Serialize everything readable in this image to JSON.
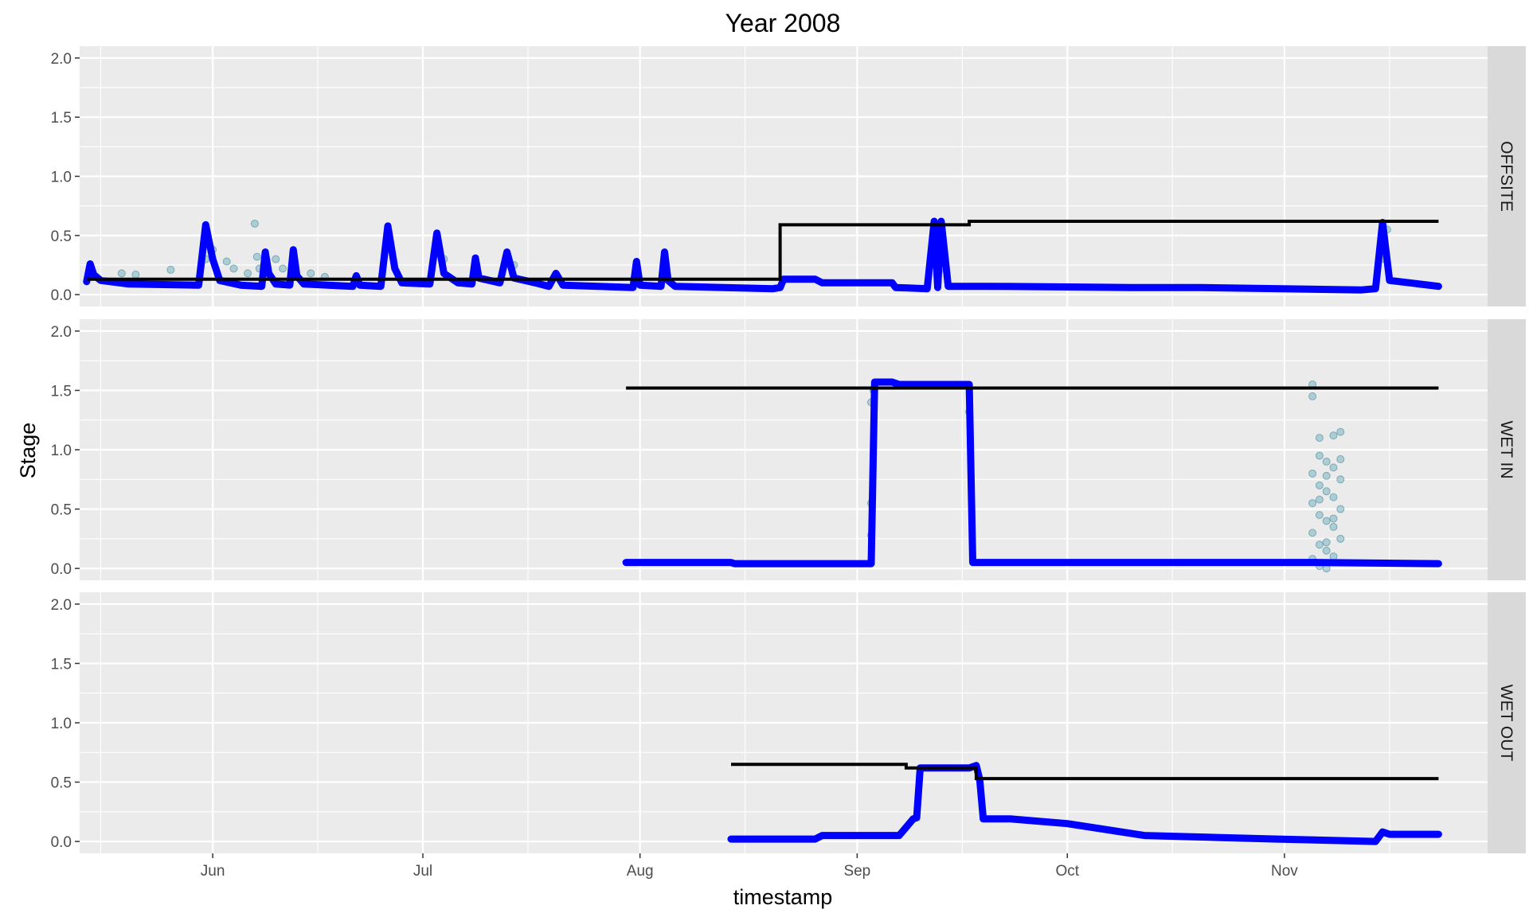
{
  "chart_data": {
    "type": "line",
    "title": "Year 2008",
    "xlabel": "timestamp",
    "ylabel": "Stage",
    "x_axis": {
      "type": "date",
      "range": [
        "2008-05-13",
        "2008-11-30"
      ],
      "ticks": [
        {
          "date": "2008-06-01",
          "label": "Jun"
        },
        {
          "date": "2008-07-01",
          "label": "Jul"
        },
        {
          "date": "2008-08-01",
          "label": "Aug"
        },
        {
          "date": "2008-09-01",
          "label": "Sep"
        },
        {
          "date": "2008-10-01",
          "label": "Oct"
        },
        {
          "date": "2008-11-01",
          "label": "Nov"
        }
      ],
      "minor_ticks": [
        "2008-05-16",
        "2008-06-16",
        "2008-07-16",
        "2008-08-16",
        "2008-09-16",
        "2008-10-16",
        "2008-11-16"
      ]
    },
    "y_axis": {
      "range": [
        -0.1,
        2.1
      ],
      "ticks": [
        0.0,
        0.5,
        1.0,
        1.5,
        2.0
      ],
      "tick_labels": [
        "0.0",
        "0.5",
        "1.0",
        "1.5",
        "2.0"
      ]
    },
    "grid": true,
    "colors": {
      "panel_bg": "#ebebeb",
      "grid": "#ffffff",
      "strip_bg": "#d9d9d9",
      "stage_series": "#0000ff",
      "scatter_points": "#5fa8b8",
      "threshold": "#000000"
    },
    "facets": [
      {
        "label": "OFFSITE",
        "threshold": [
          [
            "2008-05-14",
            0.13
          ],
          [
            "2008-08-21",
            0.13
          ],
          [
            "2008-08-21",
            0.59
          ],
          [
            "2008-09-17",
            0.59
          ],
          [
            "2008-09-17",
            0.62
          ],
          [
            "2008-11-23",
            0.62
          ]
        ],
        "stage": [
          [
            "2008-05-14",
            0.11
          ],
          [
            "2008-05-14T12",
            0.26
          ],
          [
            "2008-05-15",
            0.17
          ],
          [
            "2008-05-16",
            0.12
          ],
          [
            "2008-05-20",
            0.09
          ],
          [
            "2008-05-30",
            0.08
          ],
          [
            "2008-05-31",
            0.59
          ],
          [
            "2008-06-01",
            0.3
          ],
          [
            "2008-06-02",
            0.12
          ],
          [
            "2008-06-05",
            0.08
          ],
          [
            "2008-06-08",
            0.07
          ],
          [
            "2008-06-08T12",
            0.36
          ],
          [
            "2008-06-09",
            0.18
          ],
          [
            "2008-06-10",
            0.09
          ],
          [
            "2008-06-12",
            0.08
          ],
          [
            "2008-06-12T12",
            0.38
          ],
          [
            "2008-06-13",
            0.16
          ],
          [
            "2008-06-14",
            0.09
          ],
          [
            "2008-06-21",
            0.07
          ],
          [
            "2008-06-21T12",
            0.16
          ],
          [
            "2008-06-22",
            0.08
          ],
          [
            "2008-06-25",
            0.07
          ],
          [
            "2008-06-26",
            0.58
          ],
          [
            "2008-06-27",
            0.22
          ],
          [
            "2008-06-28",
            0.1
          ],
          [
            "2008-07-02",
            0.09
          ],
          [
            "2008-07-03",
            0.52
          ],
          [
            "2008-07-04",
            0.18
          ],
          [
            "2008-07-06",
            0.1
          ],
          [
            "2008-07-08",
            0.09
          ],
          [
            "2008-07-08T12",
            0.31
          ],
          [
            "2008-07-09",
            0.14
          ],
          [
            "2008-07-12",
            0.1
          ],
          [
            "2008-07-13",
            0.36
          ],
          [
            "2008-07-14",
            0.14
          ],
          [
            "2008-07-17",
            0.1
          ],
          [
            "2008-07-19",
            0.07
          ],
          [
            "2008-07-20",
            0.18
          ],
          [
            "2008-07-21",
            0.08
          ],
          [
            "2008-07-31",
            0.06
          ],
          [
            "2008-07-31T12",
            0.28
          ],
          [
            "2008-08-01",
            0.08
          ],
          [
            "2008-08-04",
            0.07
          ],
          [
            "2008-08-04T12",
            0.36
          ],
          [
            "2008-08-05",
            0.12
          ],
          [
            "2008-08-06",
            0.07
          ],
          [
            "2008-08-20",
            0.05
          ],
          [
            "2008-08-21",
            0.06
          ],
          [
            "2008-08-21T12",
            0.13
          ],
          [
            "2008-08-26",
            0.13
          ],
          [
            "2008-08-27",
            0.1
          ],
          [
            "2008-09-06",
            0.1
          ],
          [
            "2008-09-06T12",
            0.06
          ],
          [
            "2008-09-11",
            0.05
          ],
          [
            "2008-09-12",
            0.62
          ],
          [
            "2008-09-12T12",
            0.06
          ],
          [
            "2008-09-13",
            0.62
          ],
          [
            "2008-09-14",
            0.07
          ],
          [
            "2008-09-20",
            0.07
          ],
          [
            "2008-10-10",
            0.06
          ],
          [
            "2008-10-20",
            0.06
          ],
          [
            "2008-11-12",
            0.04
          ],
          [
            "2008-11-14",
            0.05
          ],
          [
            "2008-11-15",
            0.61
          ],
          [
            "2008-11-16",
            0.12
          ],
          [
            "2008-11-23",
            0.07
          ]
        ],
        "scatter": [
          [
            "2008-05-19",
            0.18
          ],
          [
            "2008-05-21",
            0.17
          ],
          [
            "2008-05-26",
            0.21
          ],
          [
            "2008-05-31",
            0.3
          ],
          [
            "2008-06-01",
            0.38
          ],
          [
            "2008-06-03",
            0.28
          ],
          [
            "2008-06-04",
            0.22
          ],
          [
            "2008-06-06",
            0.18
          ],
          [
            "2008-06-07",
            0.6
          ],
          [
            "2008-06-07T08",
            0.32
          ],
          [
            "2008-06-07T16",
            0.22
          ],
          [
            "2008-06-10",
            0.3
          ],
          [
            "2008-06-11",
            0.22
          ],
          [
            "2008-06-15",
            0.18
          ],
          [
            "2008-06-17",
            0.15
          ],
          [
            "2008-06-26",
            0.4
          ],
          [
            "2008-07-03",
            0.45
          ],
          [
            "2008-07-04",
            0.3
          ],
          [
            "2008-07-14",
            0.25
          ],
          [
            "2008-09-12",
            0.5
          ],
          [
            "2008-09-12T08",
            0.35
          ],
          [
            "2008-09-12T16",
            0.2
          ],
          [
            "2008-09-13",
            0.45
          ],
          [
            "2008-09-13T08",
            0.28
          ],
          [
            "2008-11-15",
            0.45
          ],
          [
            "2008-11-15T08",
            0.3
          ],
          [
            "2008-11-15T16",
            0.55
          ]
        ]
      },
      {
        "label": "WET IN",
        "threshold": [
          [
            "2008-07-30",
            1.52
          ],
          [
            "2008-11-23",
            1.52
          ]
        ],
        "stage": [
          [
            "2008-07-30",
            0.05
          ],
          [
            "2008-08-14",
            0.05
          ],
          [
            "2008-08-14T12",
            0.04
          ],
          [
            "2008-09-03",
            0.04
          ],
          [
            "2008-09-03T12",
            1.57
          ],
          [
            "2008-09-06",
            1.57
          ],
          [
            "2008-09-07",
            1.55
          ],
          [
            "2008-09-17",
            1.55
          ],
          [
            "2008-09-17T12",
            0.05
          ],
          [
            "2008-11-05",
            0.05
          ],
          [
            "2008-11-23",
            0.04
          ]
        ],
        "scatter": [
          [
            "2008-09-03",
            0.55
          ],
          [
            "2008-09-03",
            0.28
          ],
          [
            "2008-09-03",
            1.4
          ],
          [
            "2008-09-03T08",
            1.5
          ],
          [
            "2008-09-17",
            1.32
          ],
          [
            "2008-11-05",
            1.45
          ],
          [
            "2008-11-05",
            1.55
          ],
          [
            "2008-11-06",
            1.1
          ],
          [
            "2008-11-08",
            1.12
          ],
          [
            "2008-11-09",
            1.15
          ],
          [
            "2008-11-06",
            0.95
          ],
          [
            "2008-11-07",
            0.9
          ],
          [
            "2008-11-08",
            0.85
          ],
          [
            "2008-11-05",
            0.8
          ],
          [
            "2008-11-09",
            0.75
          ],
          [
            "2008-11-06",
            0.7
          ],
          [
            "2008-11-07",
            0.65
          ],
          [
            "2008-11-08",
            0.6
          ],
          [
            "2008-11-05",
            0.55
          ],
          [
            "2008-11-09",
            0.5
          ],
          [
            "2008-11-06",
            0.45
          ],
          [
            "2008-11-07",
            0.4
          ],
          [
            "2008-11-08",
            0.35
          ],
          [
            "2008-11-05",
            0.3
          ],
          [
            "2008-11-09",
            0.25
          ],
          [
            "2008-11-06",
            0.2
          ],
          [
            "2008-11-07",
            0.15
          ],
          [
            "2008-11-08",
            0.1
          ],
          [
            "2008-11-05",
            0.08
          ],
          [
            "2008-11-09",
            0.92
          ],
          [
            "2008-11-07",
            0.78
          ],
          [
            "2008-11-06",
            0.58
          ],
          [
            "2008-11-08",
            0.42
          ],
          [
            "2008-11-07",
            0.22
          ],
          [
            "2008-11-06",
            0.02
          ],
          [
            "2008-11-07",
            0.0
          ]
        ]
      },
      {
        "label": "WET OUT",
        "threshold": [
          [
            "2008-08-14",
            0.65
          ],
          [
            "2008-09-08",
            0.65
          ],
          [
            "2008-09-08",
            0.62
          ],
          [
            "2008-09-18",
            0.62
          ],
          [
            "2008-09-18",
            0.53
          ],
          [
            "2008-11-23",
            0.53
          ]
        ],
        "stage": [
          [
            "2008-08-14",
            0.02
          ],
          [
            "2008-08-26",
            0.02
          ],
          [
            "2008-08-27",
            0.05
          ],
          [
            "2008-09-07",
            0.05
          ],
          [
            "2008-09-09",
            0.19
          ],
          [
            "2008-09-09T12",
            0.2
          ],
          [
            "2008-09-10",
            0.62
          ],
          [
            "2008-09-17",
            0.62
          ],
          [
            "2008-09-18",
            0.64
          ],
          [
            "2008-09-18T12",
            0.52
          ],
          [
            "2008-09-19",
            0.19
          ],
          [
            "2008-09-23",
            0.19
          ],
          [
            "2008-10-01",
            0.15
          ],
          [
            "2008-10-12",
            0.05
          ],
          [
            "2008-10-31",
            0.02
          ],
          [
            "2008-11-14",
            0.0
          ],
          [
            "2008-11-15",
            0.08
          ],
          [
            "2008-11-16",
            0.06
          ],
          [
            "2008-11-23",
            0.06
          ]
        ],
        "scatter": []
      }
    ]
  }
}
